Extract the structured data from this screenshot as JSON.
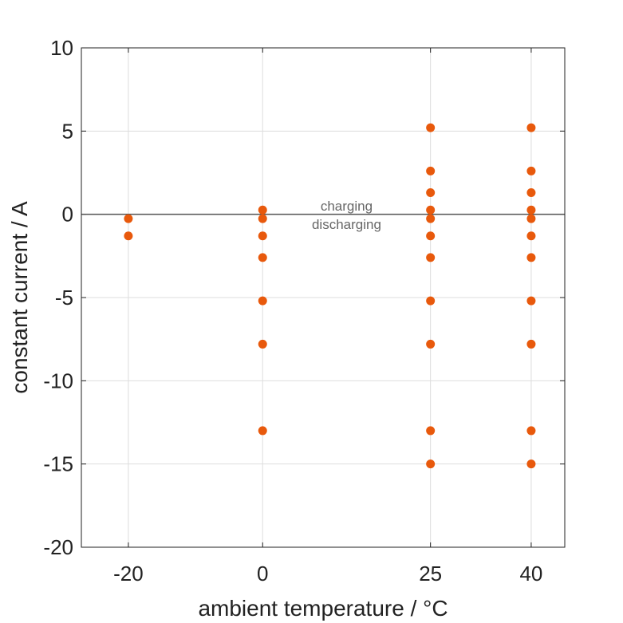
{
  "chart_data": {
    "type": "scatter",
    "xlabel": "ambient temperature / °C",
    "ylabel": "constant current / A",
    "x_ticks": [
      -20,
      0,
      25,
      40
    ],
    "y_ticks": [
      -20,
      -15,
      -10,
      -5,
      0,
      5,
      10
    ],
    "xlim": [
      -27,
      45
    ],
    "ylim": [
      -20,
      10
    ],
    "grid": true,
    "marker_color": "#E8590C",
    "reference_line": {
      "y": 0,
      "color": "#555555"
    },
    "annotations": [
      {
        "text": "charging",
        "x": 12.5,
        "y": 0.5
      },
      {
        "text": "discharging",
        "x": 12.5,
        "y": -0.6
      }
    ],
    "series": [
      {
        "points": [
          {
            "x": -20,
            "y": -0.26
          },
          {
            "x": -20,
            "y": -1.3
          },
          {
            "x": 0,
            "y": 0.26
          },
          {
            "x": 0,
            "y": -0.26
          },
          {
            "x": 0,
            "y": -1.3
          },
          {
            "x": 0,
            "y": -2.6
          },
          {
            "x": 0,
            "y": -5.2
          },
          {
            "x": 0,
            "y": -7.8
          },
          {
            "x": 0,
            "y": -13
          },
          {
            "x": 25,
            "y": 5.2
          },
          {
            "x": 25,
            "y": 2.6
          },
          {
            "x": 25,
            "y": 1.3
          },
          {
            "x": 25,
            "y": 0.26
          },
          {
            "x": 25,
            "y": -0.26
          },
          {
            "x": 25,
            "y": -1.3
          },
          {
            "x": 25,
            "y": -2.6
          },
          {
            "x": 25,
            "y": -5.2
          },
          {
            "x": 25,
            "y": -7.8
          },
          {
            "x": 25,
            "y": -13
          },
          {
            "x": 25,
            "y": -15
          },
          {
            "x": 40,
            "y": 5.2
          },
          {
            "x": 40,
            "y": 2.6
          },
          {
            "x": 40,
            "y": 1.3
          },
          {
            "x": 40,
            "y": 0.26
          },
          {
            "x": 40,
            "y": -0.26
          },
          {
            "x": 40,
            "y": -1.3
          },
          {
            "x": 40,
            "y": -2.6
          },
          {
            "x": 40,
            "y": -5.2
          },
          {
            "x": 40,
            "y": -7.8
          },
          {
            "x": 40,
            "y": -13
          },
          {
            "x": 40,
            "y": -15
          }
        ]
      }
    ]
  }
}
